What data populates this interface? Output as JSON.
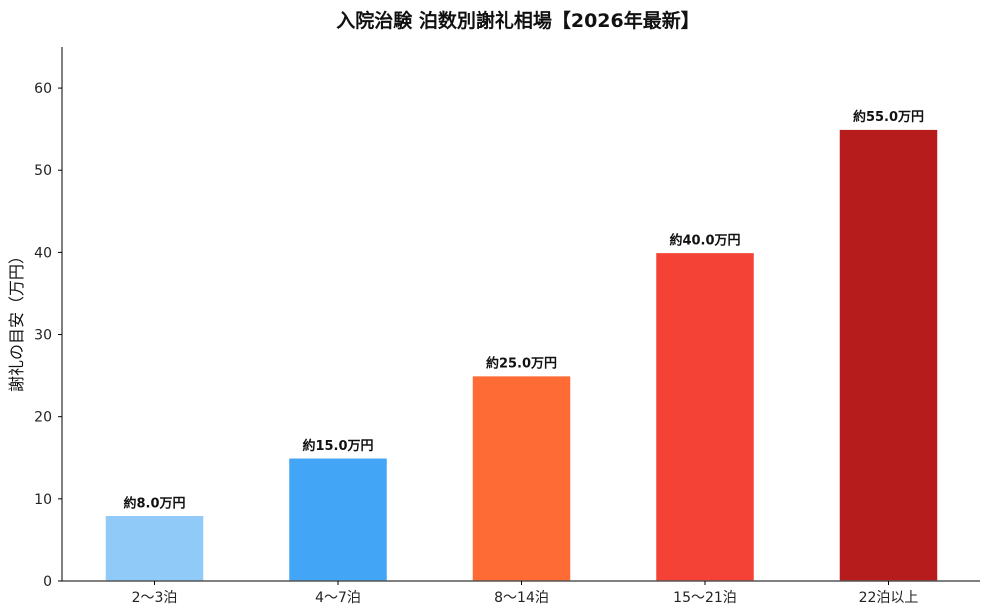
{
  "chart_data": {
    "type": "bar",
    "title": "入院治験 泊数別謝礼相場【2026年最新】",
    "xlabel": "",
    "ylabel": "謝礼の目安（万円）",
    "categories": [
      "2〜3泊",
      "4〜7泊",
      "8〜14泊",
      "15〜21泊",
      "22泊以上"
    ],
    "values": [
      8.0,
      15.0,
      25.0,
      40.0,
      55.0
    ],
    "data_labels": [
      "約8.0万円",
      "約15.0万円",
      "約25.0万円",
      "約40.0万円",
      "約55.0万円"
    ],
    "colors": [
      "#90CAF9",
      "#42A5F5",
      "#FF6B35",
      "#F44336",
      "#B71C1C"
    ],
    "ylim": [
      0,
      65
    ],
    "yticks": [
      0,
      10,
      20,
      30,
      40,
      50,
      60
    ],
    "grid": false,
    "legend": "none"
  }
}
